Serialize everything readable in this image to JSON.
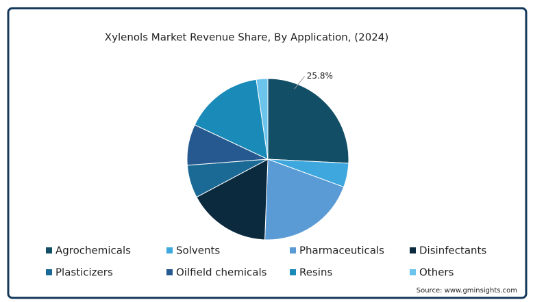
{
  "chart_data": {
    "type": "pie",
    "title": "Xylenols Market Revenue Share, By Application, (2024)",
    "categories": [
      "Agrochemicals",
      "Solvents",
      "Pharmaceuticals",
      "Disinfectants",
      "Plasticizers",
      "Oilfield chemicals",
      "Resins",
      "Others"
    ],
    "values": [
      25.8,
      4.8,
      20,
      16.6,
      6.6,
      8.2,
      15.7,
      2.3
    ],
    "value_labels": [
      "25.8%",
      null,
      null,
      null,
      null,
      null,
      null,
      null
    ],
    "colors": [
      "#124e66",
      "#3ea8de",
      "#5b9bd5",
      "#0b2a3d",
      "#1b6a96",
      "#25598f",
      "#1a8ab8",
      "#6cc4ec"
    ],
    "source": "Source: www.gminsights.com"
  }
}
